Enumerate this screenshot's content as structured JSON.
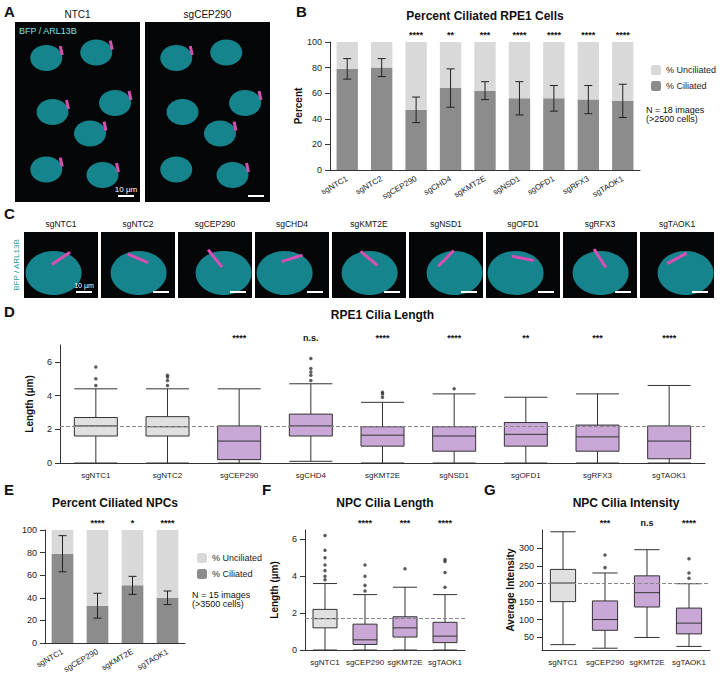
{
  "chart_data": [
    {
      "type": "image_panel",
      "panel": "A",
      "images": [
        "NTC1",
        "sgCEP290"
      ],
      "channel_label": "BFP / ARL13B",
      "scale_bar": "10 µm"
    },
    {
      "type": "bar",
      "panel": "B",
      "title": "Percent Ciliated RPE1 Cells",
      "y_label": "Percent",
      "categories": [
        "sgNTC1",
        "sgNTC2",
        "sgCEP290",
        "sgCHD4",
        "sgKMT2E",
        "sgNSD1",
        "sgOFD1",
        "sgRFX3",
        "sgTAOK1"
      ],
      "stacked": true,
      "series": [
        {
          "name": "% Unciliated",
          "color": "#d9d9d9",
          "values": [
            21,
            20,
            53,
            36,
            38,
            44,
            44,
            45,
            46
          ]
        },
        {
          "name": "% Ciliated",
          "color": "#8c8c8c",
          "values": [
            79,
            80,
            47,
            64,
            62,
            56,
            56,
            55,
            54
          ],
          "error": [
            8,
            7,
            10,
            15,
            7,
            13,
            10,
            11,
            13
          ]
        }
      ],
      "significance": [
        null,
        null,
        "****",
        "**",
        "***",
        "****",
        "****",
        "****",
        "****"
      ],
      "note": "N = 18 images (>2500 cells)",
      "ylim": [
        0,
        100
      ],
      "yticks": [
        0,
        20,
        40,
        60,
        80,
        100
      ],
      "grid": false,
      "legend": "right"
    },
    {
      "type": "image_panel",
      "panel": "C",
      "images": [
        "sgNTC1",
        "sgNTC2",
        "sgCEP290",
        "sgCHD4",
        "sgKMT2E",
        "sgNSD1",
        "sgOFD1",
        "sgRFX3",
        "sgTAOK1"
      ],
      "channel_label": "BFP / ARL13B",
      "scale_bar": "10 µm"
    },
    {
      "type": "boxplot",
      "panel": "D",
      "title": "RPE1 Cilia Length",
      "y_label": "Length (µm)",
      "categories": [
        "sgNTC1",
        "sgNTC2",
        "sgCEP290",
        "sgCHD4",
        "sgKMT2E",
        "sgNSD1",
        "sgOFD1",
        "sgRFX3",
        "sgTAOK1"
      ],
      "colors": [
        "#e0e0e0",
        "#e0e0e0",
        "#c9a8d8",
        "#c9a8d8",
        "#c9a8d8",
        "#c9a8d8",
        "#c9a8d8",
        "#c9a8d8",
        "#c9a8d8"
      ],
      "boxes": [
        [
          0,
          1.6,
          2.2,
          2.7,
          4.4
        ],
        [
          0,
          1.6,
          2.15,
          2.75,
          4.4
        ],
        [
          0,
          0.2,
          1.3,
          2.2,
          4.4
        ],
        [
          0.1,
          1.6,
          2.2,
          2.9,
          4.7
        ],
        [
          0,
          1.0,
          1.65,
          2.15,
          3.6
        ],
        [
          0,
          0.7,
          1.6,
          2.15,
          4.1
        ],
        [
          0,
          1.0,
          1.7,
          2.4,
          3.9
        ],
        [
          0,
          0.7,
          1.55,
          2.25,
          4.1
        ],
        [
          0,
          0.25,
          1.3,
          2.2,
          4.6
        ]
      ],
      "outliers": [
        [
          4.6,
          5.0,
          5.7
        ],
        [
          4.6,
          4.9,
          5.1,
          5.2
        ],
        [],
        [
          4.9,
          5.2,
          5.4,
          5.6,
          6.2
        ],
        [
          3.9,
          4.1,
          4.2
        ],
        [
          4.4
        ],
        [],
        [],
        []
      ],
      "reference_line": 2.2,
      "significance": [
        null,
        null,
        "****",
        "n.s.",
        "****",
        "****",
        "**",
        "***",
        "****"
      ],
      "ylim": [
        0,
        7
      ],
      "yticks": [
        0,
        2,
        4,
        6
      ],
      "grid": false
    },
    {
      "type": "bar",
      "panel": "E",
      "title": "Percent Ciliated NPCs",
      "categories": [
        "sgNTC1",
        "sgCEP290",
        "sgKMT2E",
        "sgTAOK1"
      ],
      "stacked": true,
      "series": [
        {
          "name": "% Unciliated",
          "color": "#d9d9d9",
          "values": [
            21,
            67,
            49,
            60
          ]
        },
        {
          "name": "% Ciliated",
          "color": "#8c8c8c",
          "values": [
            79,
            33,
            51,
            40
          ],
          "error": [
            16,
            11,
            8,
            6
          ]
        }
      ],
      "significance": [
        null,
        "****",
        "*",
        "****"
      ],
      "note": "N = 15 images (>3500 cells)",
      "ylim": [
        0,
        100
      ],
      "yticks": [
        0,
        20,
        40,
        60,
        80,
        100
      ],
      "grid": false,
      "legend": "right"
    },
    {
      "type": "boxplot",
      "panel": "F",
      "title": "NPC Cilia Length",
      "y_label": "Length (µm)",
      "categories": [
        "sgNTC1",
        "sgCEP290",
        "sgKMT2E",
        "sgTAOK1"
      ],
      "colors": [
        "#e0e0e0",
        "#c9a8d8",
        "#c9a8d8",
        "#c9a8d8"
      ],
      "boxes": [
        [
          0,
          1.2,
          1.7,
          2.2,
          3.6
        ],
        [
          0,
          0.3,
          0.55,
          1.4,
          3.0
        ],
        [
          0,
          0.7,
          1.2,
          1.8,
          3.4
        ],
        [
          0,
          0.4,
          0.75,
          1.5,
          3.0
        ]
      ],
      "outliers": [
        [
          3.8,
          4.0,
          4.3,
          4.6,
          5.0,
          5.4,
          6.2
        ],
        [
          3.2,
          3.5,
          4.0,
          4.6
        ],
        [
          4.4
        ],
        [
          3.4,
          4.2,
          4.8,
          4.9
        ]
      ],
      "reference_line": 1.7,
      "significance": [
        null,
        "****",
        "***",
        "****"
      ],
      "ylim": [
        0,
        6.5
      ],
      "yticks": [
        0,
        2,
        4,
        6
      ],
      "grid": false
    },
    {
      "type": "boxplot",
      "panel": "G",
      "title": "NPC Cilia Intensity",
      "y_label": "Average Intensity",
      "categories": [
        "sgNTC1",
        "sgCEP290",
        "sgKMT2E",
        "sgTAOK1"
      ],
      "colors": [
        "#e0e0e0",
        "#c9a8d8",
        "#c9a8d8",
        "#c9a8d8"
      ],
      "boxes": [
        [
          30,
          150,
          202,
          240,
          345
        ],
        [
          20,
          70,
          100,
          152,
          230
        ],
        [
          50,
          135,
          175,
          222,
          295
        ],
        [
          25,
          60,
          90,
          132,
          200
        ]
      ],
      "outliers": [
        [],
        [
          245,
          280
        ],
        [],
        [
          215,
          230,
          270
        ]
      ],
      "reference_line": 202,
      "significance": [
        null,
        "***",
        "n.s",
        "****"
      ],
      "ylim": [
        15,
        350
      ],
      "yticks": [
        50,
        100,
        150,
        200,
        250,
        300
      ],
      "grid": false
    }
  ]
}
